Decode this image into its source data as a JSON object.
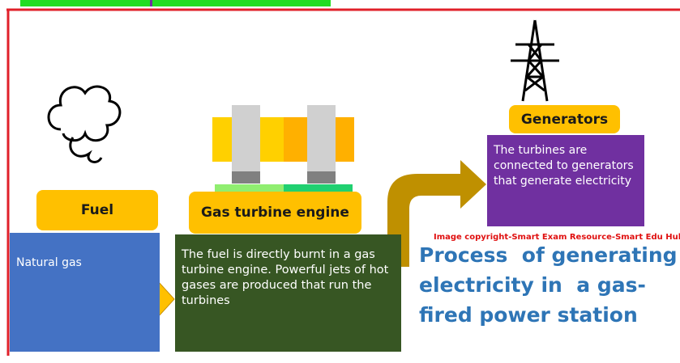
{
  "fuel": {
    "label": "Fuel",
    "description": "Natural gas"
  },
  "engine": {
    "label": "Gas turbine engine",
    "description": "The fuel is directly burnt in a gas turbine engine. Powerful jets of hot gases are produced that run the turbines"
  },
  "generators": {
    "label": "Generators",
    "description": "The turbines are connected to generators that generate electricity"
  },
  "copyright": "Image copyright-Smart Exam Resource-Smart Edu Hub",
  "title": "Process  of generating electricity in  a gas-fired power station"
}
